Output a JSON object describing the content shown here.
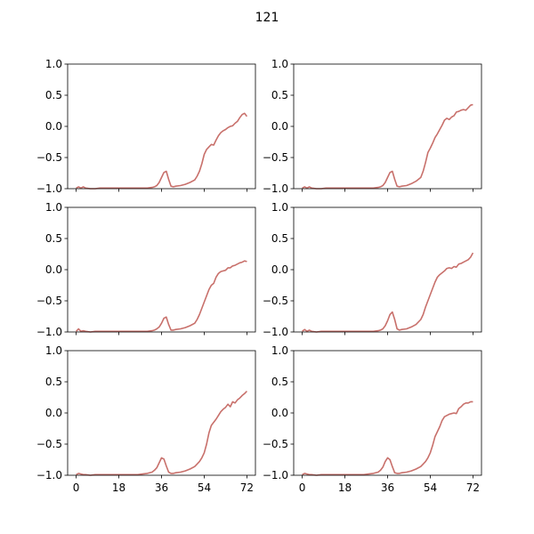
{
  "figure": {
    "title": "121"
  },
  "style": {
    "line_color": "#c8706b",
    "axis_color": "#000000",
    "background": "#ffffff"
  },
  "chart_data": {
    "type": "line",
    "layout": {
      "rows": 3,
      "cols": 2
    },
    "xticks": [
      0,
      18,
      36,
      54,
      72
    ],
    "xlim": [
      -3.6,
      75.6
    ],
    "yticks": [
      -1.0,
      -0.5,
      0.0,
      0.5,
      1.0
    ],
    "ytick_labels": [
      "−1.0",
      "−0.5",
      "0.0",
      "0.5",
      "1.0"
    ],
    "ylim": [
      -1.0,
      1.0
    ],
    "x_labels_shown_on_bottom_row_only": true,
    "panels": [
      {
        "x": [
          0,
          1,
          2,
          3,
          4,
          6,
          8,
          10,
          12,
          14,
          16,
          18,
          20,
          22,
          24,
          26,
          28,
          30,
          32,
          33,
          34,
          35,
          36,
          37,
          38,
          39,
          40,
          41,
          42,
          44,
          46,
          48,
          50,
          51,
          52,
          53,
          54,
          55,
          56,
          57,
          58,
          59,
          60,
          61,
          62,
          63,
          64,
          65,
          66,
          67,
          68,
          69,
          70,
          71,
          72
        ],
        "y": [
          -0.99,
          -0.97,
          -0.99,
          -0.97,
          -0.99,
          -1.0,
          -1.0,
          -0.99,
          -0.99,
          -0.99,
          -0.99,
          -0.99,
          -0.99,
          -0.99,
          -0.99,
          -0.99,
          -0.99,
          -0.99,
          -0.98,
          -0.97,
          -0.95,
          -0.9,
          -0.82,
          -0.74,
          -0.72,
          -0.85,
          -0.96,
          -0.97,
          -0.96,
          -0.95,
          -0.93,
          -0.9,
          -0.86,
          -0.8,
          -0.72,
          -0.6,
          -0.45,
          -0.37,
          -0.33,
          -0.29,
          -0.3,
          -0.22,
          -0.15,
          -0.1,
          -0.07,
          -0.05,
          -0.02,
          0.0,
          0.01,
          0.05,
          0.08,
          0.14,
          0.19,
          0.21,
          0.16
        ]
      },
      {
        "x": [
          0,
          1,
          2,
          3,
          4,
          6,
          8,
          10,
          12,
          14,
          16,
          18,
          20,
          22,
          24,
          26,
          28,
          30,
          32,
          33,
          34,
          35,
          36,
          37,
          38,
          39,
          40,
          41,
          42,
          44,
          46,
          48,
          50,
          51,
          52,
          53,
          54,
          55,
          56,
          57,
          58,
          59,
          60,
          61,
          62,
          63,
          64,
          65,
          66,
          67,
          68,
          69,
          70,
          71,
          72
        ],
        "y": [
          -0.99,
          -0.97,
          -0.99,
          -0.97,
          -0.99,
          -1.0,
          -1.0,
          -0.99,
          -0.99,
          -0.99,
          -0.99,
          -0.99,
          -0.99,
          -0.99,
          -0.99,
          -0.99,
          -0.99,
          -0.99,
          -0.98,
          -0.97,
          -0.95,
          -0.9,
          -0.82,
          -0.74,
          -0.72,
          -0.85,
          -0.96,
          -0.97,
          -0.96,
          -0.95,
          -0.92,
          -0.88,
          -0.82,
          -0.72,
          -0.58,
          -0.42,
          -0.35,
          -0.27,
          -0.18,
          -0.12,
          -0.05,
          0.02,
          0.1,
          0.13,
          0.11,
          0.15,
          0.17,
          0.23,
          0.24,
          0.26,
          0.27,
          0.26,
          0.3,
          0.34,
          0.35
        ]
      },
      {
        "x": [
          0,
          1,
          2,
          3,
          4,
          6,
          8,
          10,
          12,
          14,
          16,
          18,
          20,
          22,
          24,
          26,
          28,
          30,
          32,
          33,
          34,
          35,
          36,
          37,
          38,
          39,
          40,
          41,
          42,
          44,
          46,
          48,
          50,
          51,
          52,
          53,
          54,
          55,
          56,
          57,
          58,
          59,
          60,
          61,
          62,
          63,
          64,
          65,
          66,
          67,
          68,
          69,
          70,
          71,
          72
        ],
        "y": [
          -0.99,
          -0.95,
          -0.99,
          -0.98,
          -0.99,
          -1.0,
          -0.99,
          -0.99,
          -0.99,
          -0.99,
          -0.99,
          -0.99,
          -0.99,
          -0.99,
          -0.99,
          -0.99,
          -0.99,
          -0.99,
          -0.98,
          -0.97,
          -0.95,
          -0.92,
          -0.86,
          -0.78,
          -0.76,
          -0.88,
          -0.97,
          -0.97,
          -0.96,
          -0.95,
          -0.93,
          -0.9,
          -0.86,
          -0.8,
          -0.72,
          -0.62,
          -0.52,
          -0.42,
          -0.32,
          -0.25,
          -0.22,
          -0.12,
          -0.06,
          -0.03,
          -0.02,
          -0.01,
          0.03,
          0.03,
          0.06,
          0.07,
          0.09,
          0.11,
          0.12,
          0.14,
          0.13
        ]
      },
      {
        "x": [
          0,
          1,
          2,
          3,
          4,
          6,
          8,
          10,
          12,
          14,
          16,
          18,
          20,
          22,
          24,
          26,
          28,
          30,
          32,
          33,
          34,
          35,
          36,
          37,
          38,
          39,
          40,
          41,
          42,
          44,
          46,
          48,
          50,
          51,
          52,
          53,
          54,
          55,
          56,
          57,
          58,
          59,
          60,
          61,
          62,
          63,
          64,
          65,
          66,
          67,
          68,
          69,
          70,
          71,
          72
        ],
        "y": [
          -0.99,
          -0.96,
          -0.99,
          -0.97,
          -0.99,
          -1.0,
          -0.99,
          -0.99,
          -0.99,
          -0.99,
          -0.99,
          -0.99,
          -0.99,
          -0.99,
          -0.99,
          -0.99,
          -0.99,
          -0.99,
          -0.98,
          -0.97,
          -0.95,
          -0.9,
          -0.82,
          -0.72,
          -0.68,
          -0.8,
          -0.95,
          -0.97,
          -0.96,
          -0.95,
          -0.92,
          -0.88,
          -0.8,
          -0.72,
          -0.6,
          -0.5,
          -0.4,
          -0.3,
          -0.2,
          -0.12,
          -0.08,
          -0.05,
          -0.02,
          0.02,
          0.03,
          0.02,
          0.05,
          0.04,
          0.09,
          0.1,
          0.12,
          0.14,
          0.16,
          0.2,
          0.27
        ]
      },
      {
        "x": [
          0,
          1,
          2,
          3,
          4,
          6,
          8,
          10,
          12,
          14,
          16,
          18,
          20,
          22,
          24,
          26,
          28,
          30,
          32,
          33,
          34,
          35,
          36,
          37,
          38,
          39,
          40,
          41,
          42,
          44,
          46,
          48,
          50,
          51,
          52,
          53,
          54,
          55,
          56,
          57,
          58,
          59,
          60,
          61,
          62,
          63,
          64,
          65,
          66,
          67,
          68,
          69,
          70,
          71,
          72
        ],
        "y": [
          -0.99,
          -0.97,
          -0.98,
          -0.99,
          -0.99,
          -1.0,
          -0.99,
          -0.99,
          -0.99,
          -0.99,
          -0.99,
          -0.99,
          -0.99,
          -0.99,
          -0.99,
          -0.99,
          -0.98,
          -0.97,
          -0.95,
          -0.92,
          -0.88,
          -0.8,
          -0.72,
          -0.74,
          -0.85,
          -0.95,
          -0.97,
          -0.97,
          -0.96,
          -0.95,
          -0.93,
          -0.9,
          -0.86,
          -0.82,
          -0.78,
          -0.72,
          -0.64,
          -0.5,
          -0.32,
          -0.2,
          -0.15,
          -0.1,
          -0.04,
          0.02,
          0.06,
          0.09,
          0.14,
          0.1,
          0.18,
          0.16,
          0.21,
          0.24,
          0.28,
          0.31,
          0.35
        ]
      },
      {
        "x": [
          0,
          1,
          2,
          3,
          4,
          6,
          8,
          10,
          12,
          14,
          16,
          18,
          20,
          22,
          24,
          26,
          28,
          30,
          32,
          33,
          34,
          35,
          36,
          37,
          38,
          39,
          40,
          41,
          42,
          44,
          46,
          48,
          50,
          51,
          52,
          53,
          54,
          55,
          56,
          57,
          58,
          59,
          60,
          61,
          62,
          63,
          64,
          65,
          66,
          67,
          68,
          69,
          70,
          71,
          72
        ],
        "y": [
          -0.99,
          -0.97,
          -0.98,
          -0.99,
          -0.99,
          -1.0,
          -0.99,
          -0.99,
          -0.99,
          -0.99,
          -0.99,
          -0.99,
          -0.99,
          -0.99,
          -0.99,
          -0.99,
          -0.98,
          -0.97,
          -0.95,
          -0.92,
          -0.87,
          -0.78,
          -0.72,
          -0.75,
          -0.86,
          -0.96,
          -0.97,
          -0.97,
          -0.96,
          -0.95,
          -0.93,
          -0.9,
          -0.86,
          -0.82,
          -0.78,
          -0.72,
          -0.64,
          -0.52,
          -0.38,
          -0.3,
          -0.22,
          -0.12,
          -0.06,
          -0.04,
          -0.02,
          -0.01,
          0.0,
          -0.01,
          0.07,
          0.1,
          0.14,
          0.16,
          0.16,
          0.18,
          0.18
        ]
      }
    ]
  }
}
